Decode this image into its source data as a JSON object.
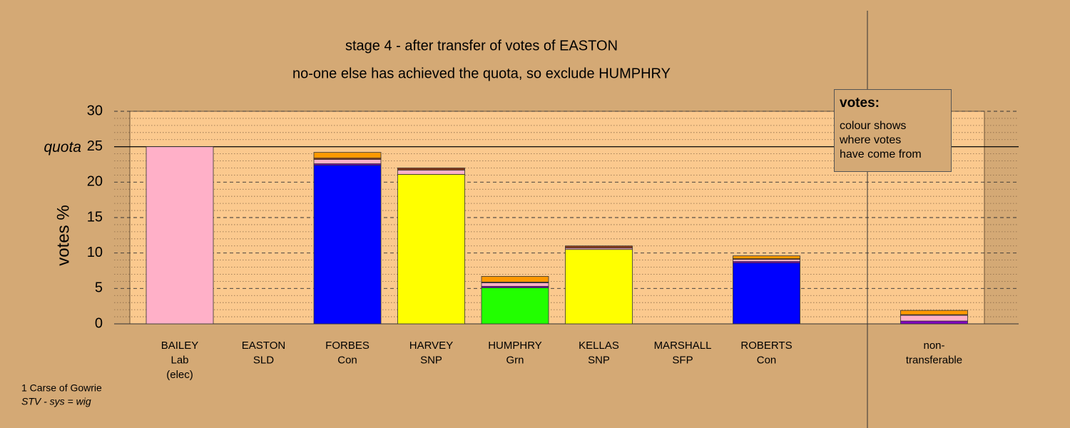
{
  "chart_data": {
    "type": "stacked-bar",
    "title": "stage 4 - after transfer of votes of EASTON",
    "subtitle": "no-one else has achieved the quota, so exclude HUMPHRY",
    "y_label": "votes %",
    "categories": [
      [
        "BAILEY",
        "Lab",
        "(elec)"
      ],
      [
        "EASTON",
        "SLD"
      ],
      [
        "FORBES",
        "Con"
      ],
      [
        "HARVEY",
        "SNP"
      ],
      [
        "HUMPHRY",
        "Grn"
      ],
      [
        "KELLAS",
        "SNP"
      ],
      [
        "MARSHALL",
        "SFP"
      ],
      [
        "ROBERTS",
        "Con"
      ],
      [
        "non-",
        "transferable"
      ]
    ],
    "series": [
      {
        "color": "#0000ff",
        "values": [
          0,
          0,
          22.4,
          0,
          0,
          0,
          0,
          8.6,
          0
        ]
      },
      {
        "color": "#ffff00",
        "values": [
          0,
          0,
          0,
          21.1,
          0,
          10.5,
          0,
          0,
          0
        ]
      },
      {
        "color": "#22ff00",
        "values": [
          0,
          0,
          0,
          0,
          5.1,
          0,
          0,
          0,
          0
        ]
      },
      {
        "color": "#8000c0",
        "values": [
          0,
          0,
          0.2,
          0,
          0.2,
          0,
          0,
          0.2,
          0.4
        ]
      },
      {
        "color": "#ffb0c8",
        "values": [
          25,
          0,
          0.6,
          0.6,
          0.5,
          0.2,
          0,
          0.3,
          0.8
        ]
      },
      {
        "color": "#8b3a1a",
        "values": [
          0,
          0,
          0.2,
          0.3,
          0.1,
          0.3,
          0,
          0.1,
          0.1
        ]
      },
      {
        "color": "#ff9900",
        "values": [
          0,
          0,
          0.8,
          0,
          0.8,
          0,
          0,
          0.4,
          0.6
        ]
      }
    ],
    "ylim": [
      0,
      30
    ],
    "yticks": [
      0,
      5,
      10,
      15,
      20,
      {
        "value": 25,
        "label": "25"
      },
      30
    ],
    "minor_yticks": [
      1,
      2,
      3,
      4,
      6,
      7,
      8,
      9,
      11,
      12,
      13,
      14,
      16,
      17,
      18,
      19,
      21,
      22,
      23,
      24,
      26,
      27,
      28,
      29
    ],
    "quota": {
      "value": 25,
      "label": "quota"
    },
    "legend_box": {
      "title": "votes:",
      "lines": [
        "colour shows",
        "where votes",
        "have come from"
      ]
    },
    "footer": [
      "1 Carse of Gowrie",
      "STV - sys = wig"
    ],
    "grid": true
  }
}
